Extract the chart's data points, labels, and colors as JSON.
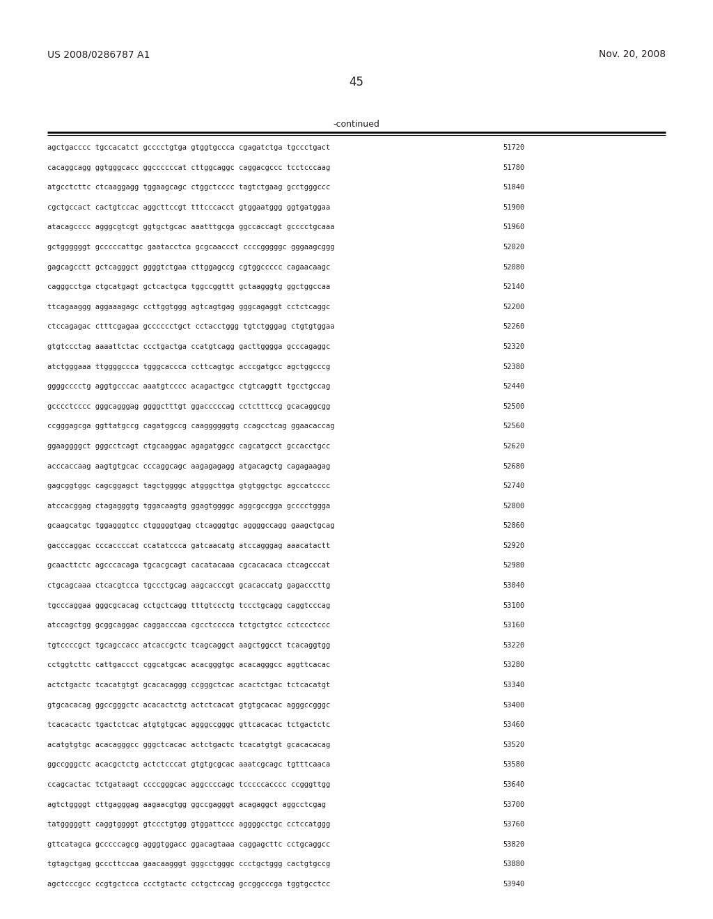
{
  "header_left": "US 2008/0286787 A1",
  "header_right": "Nov. 20, 2008",
  "page_number": "45",
  "continued_label": "-continued",
  "background_color": "#ffffff",
  "text_color": "#231f20",
  "line_color": "#000000",
  "lines": [
    {
      "seq": "agctgacccc tgccacatct gcccctgtga gtggtgccca cgagatctga tgccctgact",
      "num": "51720"
    },
    {
      "seq": "cacaggcagg ggtgggcacc ggccccccat cttggcaggc caggacgccc tcctcccaag",
      "num": "51780"
    },
    {
      "seq": "atgcctcttc ctcaaggagg tggaagcagc ctggctcccc tagtctgaag gcctgggccc",
      "num": "51840"
    },
    {
      "seq": "cgctgccact cactgtccac aggcttccgt tttcccacct gtggaatggg ggtgatggaa",
      "num": "51900"
    },
    {
      "seq": "atacagcccc agggcgtcgt ggtgctgcac aaatttgcga ggccaccagt gcccctgcaaa",
      "num": "51960"
    },
    {
      "seq": "gctggggggt gcccccattgc gaatacctca gcgcaaccct ccccgggggc gggaagcggg",
      "num": "52020"
    },
    {
      "seq": "gagcagcctt gctcagggct ggggtctgaa cttggagccg cgtggccccc cagaacaagc",
      "num": "52080"
    },
    {
      "seq": "cagggcctga ctgcatgagt gctcactgca tggccggttt gctaagggtg ggctggccaa",
      "num": "52140"
    },
    {
      "seq": "ttcagaaggg aggaaagagc ccttggtggg agtcagtgag gggcagaggt cctctcaggc",
      "num": "52200"
    },
    {
      "seq": "ctccagagac ctttcgagaa gcccccctgct cctacctggg tgtctgggag ctgtgtggaa",
      "num": "52260"
    },
    {
      "seq": "gtgtccctag aaaattctac ccctgactga ccatgtcagg gacttgggga gcccagaggc",
      "num": "52320"
    },
    {
      "seq": "atctgggaaa ttggggccca tgggcaccca ccttcagtgc acccgatgcc agctggcccg",
      "num": "52380"
    },
    {
      "seq": "ggggcccctg aggtgcccac aaatgtcccc acagactgcc ctgtcaggtt tgcctgccag",
      "num": "52440"
    },
    {
      "seq": "gcccctcccc gggcagggag ggggctttgt ggacccccag cctctttccg gcacaggcgg",
      "num": "52500"
    },
    {
      "seq": "ccgggagcga ggttatgccg cagatggccg caaggggggtg ccagcctcag ggaacaccag",
      "num": "52560"
    },
    {
      "seq": "ggaaggggct gggcctcagt ctgcaaggac agagatggcc cagcatgcct gccacctgcc",
      "num": "52620"
    },
    {
      "seq": "acccaccaag aagtgtgcac cccaggcagc aagagagagg atgacagctg cagagaagag",
      "num": "52680"
    },
    {
      "seq": "gagcggtggc cagcggagct tagctggggc atgggcttga gtgtggctgc agccatcccc",
      "num": "52740"
    },
    {
      "seq": "atccacggag ctagagggtg tggacaagtg ggagtggggc aggcgccgga gcccctggga",
      "num": "52800"
    },
    {
      "seq": "gcaagcatgc tggagggtcc ctgggggtgag ctcagggtgc aggggccagg gaagctgcag",
      "num": "52860"
    },
    {
      "seq": "gacccaggac cccaccccat ccatatccca gatcaacatg atccagggag aaacatactt",
      "num": "52920"
    },
    {
      "seq": "gcaacttctc agcccacaga tgcacgcagt cacatacaaa cgcacacaca ctcagcccat",
      "num": "52980"
    },
    {
      "seq": "ctgcagcaaa ctcacgtcca tgccctgcag aagcacccgt gcacaccatg gagacccttg",
      "num": "53040"
    },
    {
      "seq": "tgcccaggaa gggcgcacag cctgctcagg tttgtccctg tccctgcagg caggtcccag",
      "num": "53100"
    },
    {
      "seq": "atccagctgg gcggcaggac caggacccaa cgcctcccca tctgctgtcc cctccctccc",
      "num": "53160"
    },
    {
      "seq": "tgtccccgct tgcagccacc atcaccgctc tcagcaggct aagctggcct tcacaggtgg",
      "num": "53220"
    },
    {
      "seq": "cctggtcttc cattgaccct cggcatgcac acacgggtgc acacagggcc aggttcacac",
      "num": "53280"
    },
    {
      "seq": "actctgactc tcacatgtgt gcacacaggg ccgggctcac acactctgac tctcacatgt",
      "num": "53340"
    },
    {
      "seq": "gtgcacacag ggccgggctc acacactctg actctcacat gtgtgcacac agggccgggc",
      "num": "53400"
    },
    {
      "seq": "tcacacactc tgactctcac atgtgtgcac agggccgggc gttcacacac tctgactctc",
      "num": "53460"
    },
    {
      "seq": "acatgtgtgc acacagggcc gggctcacac actctgactc tcacatgtgt gcacacacag",
      "num": "53520"
    },
    {
      "seq": "ggccgggctc acacgctctg actctcccat gtgtgcgcac aaatcgcagc tgtttcaaca",
      "num": "53580"
    },
    {
      "seq": "ccagcactac tctgataagt ccccgggcac aggccccagc tcccccacccc ccgggttgg",
      "num": "53640"
    },
    {
      "seq": "agtctggggt cttgagggag aagaacgtgg ggccgagggt acagaggct aggcctcgag",
      "num": "53700"
    },
    {
      "seq": "tatgggggtt caggtggggt gtccctgtgg gtggattccc aggggcctgc cctccatggg",
      "num": "53760"
    },
    {
      "seq": "gttcatagca gcccccagcg agggtggacc ggacagtaaa caggagcttc cctgcaggcc",
      "num": "53820"
    },
    {
      "seq": "tgtagctgag gcccttccaa gaacaagggt gggcctgggc ccctgctggg cactgtgccg",
      "num": "53880"
    },
    {
      "seq": "agctcccgcc ccgtgctcca ccctgtactc cctgctccag gccggcccga tggtgcctcc",
      "num": "53940"
    }
  ]
}
